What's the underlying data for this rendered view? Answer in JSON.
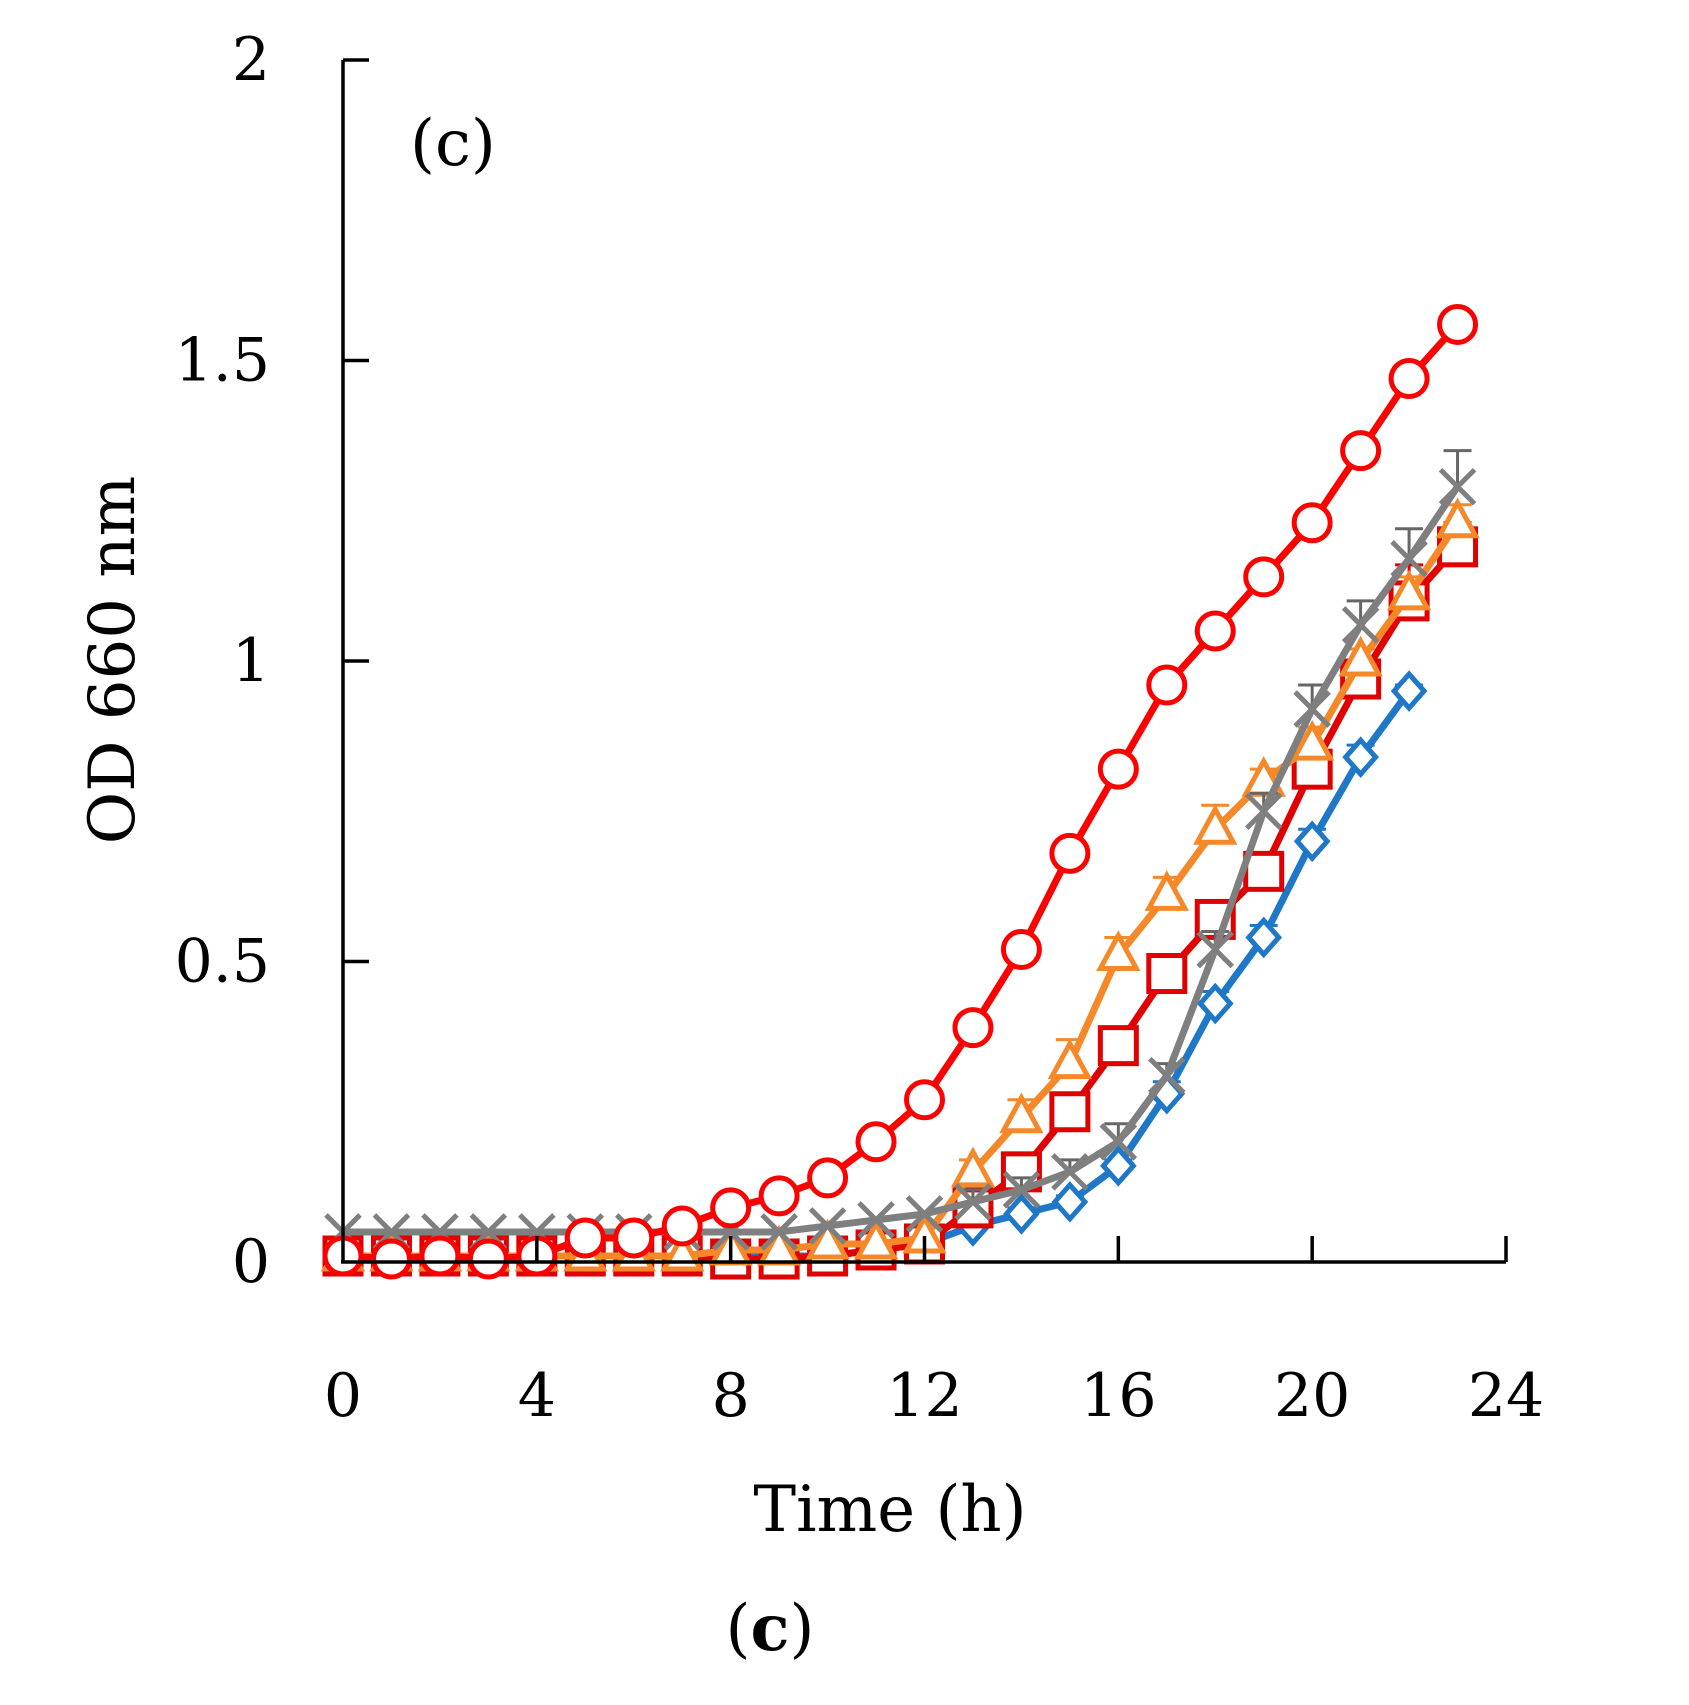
{
  "chart_data": {
    "type": "line",
    "title": "",
    "panel_label": "(c)",
    "caption_open": "(",
    "caption_letter": "c",
    "caption_close": ")",
    "xlabel": "Time (h)",
    "ylabel": "OD 660 nm",
    "xlim": [
      0,
      24
    ],
    "ylim": [
      0,
      2
    ],
    "xticks": [
      0,
      4,
      8,
      12,
      16,
      20,
      24
    ],
    "xtick_labels": [
      "0",
      "4",
      "8",
      "12",
      "16",
      "20",
      "24"
    ],
    "yticks": [
      0,
      0.5,
      1,
      1.5,
      2
    ],
    "ytick_labels": [
      "0",
      "0.5",
      "1",
      "1.5",
      "2"
    ],
    "grid": false,
    "series": [
      {
        "name": "diamond-series",
        "marker": "diamond",
        "color": "#1f77c8",
        "x": [
          0,
          1,
          2,
          3,
          4,
          5,
          6,
          7,
          8,
          9,
          10,
          11,
          12,
          13,
          14,
          15,
          16,
          17,
          18,
          19,
          20,
          21,
          22
        ],
        "y": [
          0.01,
          0.01,
          0.01,
          0.01,
          0.01,
          0.01,
          0.01,
          0.01,
          0.01,
          0.01,
          0.01,
          0.02,
          0.03,
          0.06,
          0.08,
          0.1,
          0.16,
          0.28,
          0.43,
          0.54,
          0.7,
          0.84,
          0.95
        ],
        "err": [
          0,
          0,
          0,
          0,
          0,
          0,
          0,
          0,
          0,
          0,
          0,
          0,
          0,
          0,
          0.01,
          0.01,
          0.01,
          0.02,
          0.02,
          0.02,
          0.02,
          0.02,
          0.01
        ]
      },
      {
        "name": "square-series",
        "marker": "square",
        "color": "#e00000",
        "x": [
          0,
          1,
          2,
          3,
          4,
          5,
          6,
          7,
          8,
          9,
          10,
          11,
          12,
          13,
          14,
          15,
          16,
          17,
          18,
          19,
          20,
          21,
          22,
          23
        ],
        "y": [
          0.01,
          0.01,
          0.01,
          0.01,
          0.01,
          0.01,
          0.01,
          0.01,
          0.005,
          0.005,
          0.01,
          0.02,
          0.03,
          0.09,
          0.15,
          0.25,
          0.36,
          0.48,
          0.57,
          0.65,
          0.82,
          0.97,
          1.1,
          1.19
        ],
        "err": [
          0,
          0,
          0,
          0,
          0,
          0,
          0,
          0,
          0,
          0,
          0,
          0,
          0,
          0,
          0.01,
          0.01,
          0.02,
          0.02,
          0.02,
          0.02,
          0.03,
          0.05,
          0.06,
          0.04
        ]
      },
      {
        "name": "triangle-series",
        "marker": "triangle",
        "color": "#f5892a",
        "x": [
          0,
          1,
          2,
          3,
          4,
          5,
          6,
          7,
          8,
          9,
          10,
          11,
          12,
          13,
          14,
          15,
          16,
          17,
          18,
          19,
          20,
          21,
          22,
          23
        ],
        "y": [
          0.01,
          0.01,
          0.01,
          0.01,
          0.01,
          0.01,
          0.01,
          0.01,
          0.02,
          0.02,
          0.03,
          0.03,
          0.04,
          0.15,
          0.24,
          0.33,
          0.51,
          0.61,
          0.72,
          0.8,
          0.86,
          1.0,
          1.11,
          1.23
        ],
        "err": [
          0,
          0,
          0,
          0,
          0,
          0,
          0,
          0,
          0,
          0,
          0,
          0,
          0,
          0.02,
          0.03,
          0.04,
          0.03,
          0.03,
          0.04,
          0.02,
          0.03,
          0.02,
          0.03,
          0.03
        ]
      },
      {
        "name": "cross-series",
        "marker": "cross",
        "color": "#7f7f7f",
        "x": [
          0,
          1,
          2,
          3,
          4,
          5,
          6,
          7,
          8,
          9,
          10,
          11,
          12,
          13,
          14,
          15,
          16,
          17,
          18,
          19,
          20,
          21,
          22,
          23
        ],
        "y": [
          0.05,
          0.05,
          0.05,
          0.05,
          0.05,
          0.05,
          0.05,
          0.05,
          0.05,
          0.05,
          0.06,
          0.07,
          0.08,
          0.1,
          0.12,
          0.15,
          0.2,
          0.31,
          0.52,
          0.75,
          0.92,
          1.06,
          1.17,
          1.29
        ],
        "err": [
          0,
          0,
          0,
          0,
          0,
          0,
          0,
          0,
          0,
          0,
          0,
          0,
          0,
          0.02,
          0.02,
          0.02,
          0.03,
          0.02,
          0.03,
          0.03,
          0.04,
          0.04,
          0.05,
          0.06
        ]
      },
      {
        "name": "circle-series",
        "marker": "circle",
        "color": "#ff0000",
        "x": [
          0,
          1,
          2,
          3,
          4,
          5,
          6,
          7,
          8,
          9,
          10,
          11,
          12,
          13,
          14,
          15,
          16,
          17,
          18,
          19,
          20,
          21,
          22,
          23
        ],
        "y": [
          0.01,
          0.005,
          0.01,
          0.005,
          0.01,
          0.04,
          0.04,
          0.06,
          0.09,
          0.11,
          0.14,
          0.2,
          0.27,
          0.39,
          0.52,
          0.68,
          0.82,
          0.96,
          1.05,
          1.14,
          1.23,
          1.35,
          1.47,
          1.56
        ],
        "err": [
          0,
          0,
          0,
          0,
          0,
          0,
          0,
          0,
          0,
          0,
          0,
          0,
          0,
          0,
          0,
          0,
          0,
          0,
          0,
          0,
          0,
          0,
          0,
          0
        ]
      }
    ]
  }
}
